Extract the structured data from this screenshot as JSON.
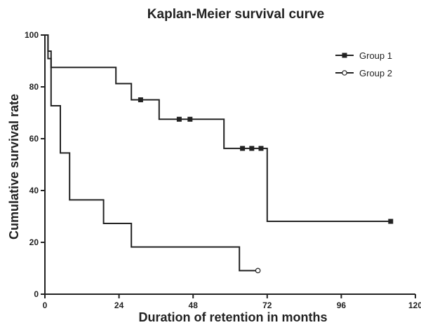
{
  "chart_data": {
    "type": "line",
    "step": true,
    "title": "Kaplan-Meier survival curve",
    "xlabel": "Duration of retention in months",
    "ylabel": "Cumulative survival rate",
    "xlim": [
      0,
      120
    ],
    "ylim": [
      0,
      100
    ],
    "xticks": [
      "0",
      "24",
      "48",
      "72",
      "96",
      "120"
    ],
    "yticks": [
      "0",
      "20",
      "40",
      "60",
      "80",
      "100"
    ],
    "grid": false,
    "legend_position": "top-right",
    "series": [
      {
        "name": "Group 1",
        "marker": "filled-square",
        "color": "#222222",
        "x": [
          0,
          1,
          2,
          3,
          23,
          28,
          37,
          58,
          72,
          112
        ],
        "y": [
          100,
          93.8,
          87.5,
          87.5,
          81.25,
          75,
          67.5,
          56.25,
          28.1,
          28.1
        ],
        "censored": [
          {
            "x": 31,
            "y": 75
          },
          {
            "x": 43.5,
            "y": 67.5
          },
          {
            "x": 47,
            "y": 67.5
          },
          {
            "x": 64,
            "y": 56.25
          },
          {
            "x": 67,
            "y": 56.25
          },
          {
            "x": 70,
            "y": 56.25
          },
          {
            "x": 112,
            "y": 28.1
          }
        ]
      },
      {
        "name": "Group 2",
        "marker": "open-circle",
        "color": "#222222",
        "x": [
          0,
          1,
          2,
          5,
          8,
          19,
          28,
          63,
          69
        ],
        "y": [
          100,
          90.9,
          72.7,
          54.5,
          36.4,
          27.3,
          18.2,
          9.1,
          9.1
        ],
        "censored": [
          {
            "x": 69,
            "y": 9.1
          }
        ]
      }
    ]
  }
}
